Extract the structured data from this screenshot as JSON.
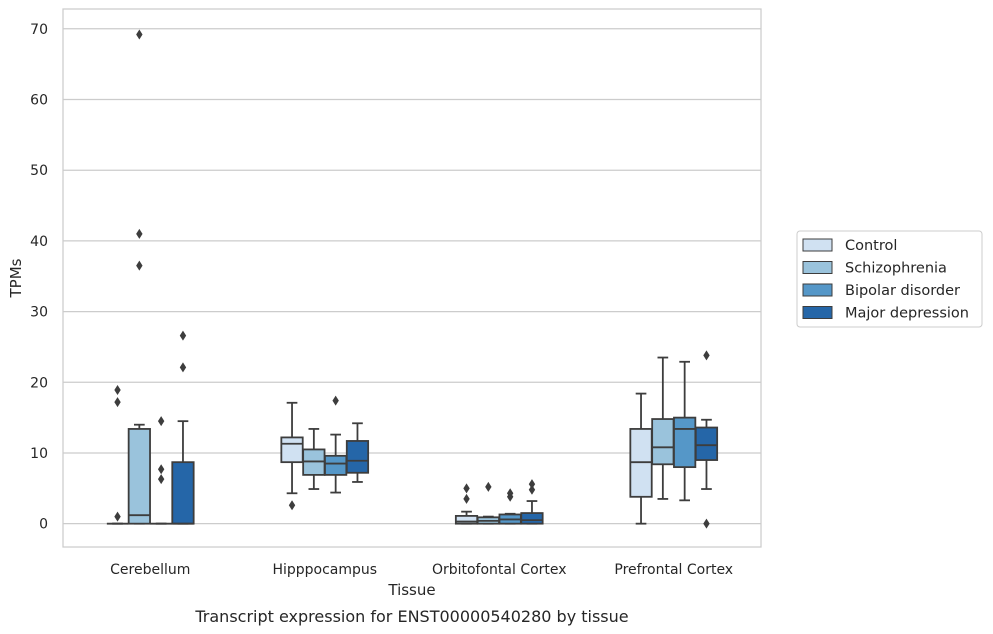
{
  "chart_data": {
    "type": "box",
    "title": "",
    "caption": "Transcript expression for ENST00000540280 by tissue",
    "xlabel": "Tissue",
    "ylabel": "TPMs",
    "ylim": [
      -3.3,
      72.8
    ],
    "yticks": [
      0,
      10,
      20,
      30,
      40,
      50,
      60,
      70
    ],
    "grid": "horizontal",
    "legend_position": "right",
    "categories": [
      "Cerebellum",
      "Hipppocampus",
      "Orbitofontal Cortex",
      "Prefrontal Cortex"
    ],
    "series": [
      {
        "name": "Control",
        "color": "#d0e1f2",
        "boxes": [
          {
            "q1": 0,
            "median": 0,
            "q3": 0,
            "whisker_low": 0,
            "whisker_high": 0,
            "outliers": [
              1.0,
              17.2,
              18.9
            ]
          },
          {
            "q1": 8.7,
            "median": 11.3,
            "q3": 12.2,
            "whisker_low": 4.3,
            "whisker_high": 17.1,
            "outliers": [
              2.6
            ]
          },
          {
            "q1": 0,
            "median": 0.3,
            "q3": 1.1,
            "whisker_low": 0,
            "whisker_high": 1.7,
            "outliers": [
              3.5,
              5.0
            ]
          },
          {
            "q1": 3.8,
            "median": 8.7,
            "q3": 13.4,
            "whisker_low": 0,
            "whisker_high": 18.4,
            "outliers": []
          }
        ]
      },
      {
        "name": "Schizophrenia",
        "color": "#9ac3dc",
        "boxes": [
          {
            "q1": 0,
            "median": 1.2,
            "q3": 13.4,
            "whisker_low": 0,
            "whisker_high": 14.0,
            "outliers": [
              36.5,
              41.0,
              69.2
            ]
          },
          {
            "q1": 6.9,
            "median": 8.8,
            "q3": 10.5,
            "whisker_low": 4.9,
            "whisker_high": 13.4,
            "outliers": []
          },
          {
            "q1": 0,
            "median": 0.4,
            "q3": 0.9,
            "whisker_low": 0,
            "whisker_high": 1.0,
            "outliers": [
              5.2
            ]
          },
          {
            "q1": 8.4,
            "median": 10.8,
            "q3": 14.8,
            "whisker_low": 3.5,
            "whisker_high": 23.5,
            "outliers": []
          }
        ]
      },
      {
        "name": "Bipolar disorder",
        "color": "#5597c8",
        "boxes": [
          {
            "q1": 0,
            "median": 0,
            "q3": 0,
            "whisker_low": 0,
            "whisker_high": 0,
            "outliers": [
              6.3,
              7.7,
              14.5
            ]
          },
          {
            "q1": 6.9,
            "median": 8.5,
            "q3": 9.6,
            "whisker_low": 4.4,
            "whisker_high": 12.6,
            "outliers": [
              17.4
            ]
          },
          {
            "q1": 0,
            "median": 0.6,
            "q3": 1.3,
            "whisker_low": 0,
            "whisker_high": 1.4,
            "outliers": [
              3.8,
              4.3
            ]
          },
          {
            "q1": 8.0,
            "median": 13.4,
            "q3": 15.0,
            "whisker_low": 3.3,
            "whisker_high": 22.9,
            "outliers": []
          }
        ]
      },
      {
        "name": "Major depression",
        "color": "#2566a8",
        "boxes": [
          {
            "q1": 0,
            "median": 0,
            "q3": 8.7,
            "whisker_low": 0,
            "whisker_high": 14.5,
            "outliers": [
              22.1,
              26.6
            ]
          },
          {
            "q1": 7.2,
            "median": 8.9,
            "q3": 11.7,
            "whisker_low": 5.9,
            "whisker_high": 14.2,
            "outliers": []
          },
          {
            "q1": 0,
            "median": 0.5,
            "q3": 1.5,
            "whisker_low": 0,
            "whisker_high": 3.2,
            "outliers": [
              4.8,
              5.6
            ]
          },
          {
            "q1": 9.0,
            "median": 11.1,
            "q3": 13.6,
            "whisker_low": 4.9,
            "whisker_high": 14.7,
            "outliers": [
              0,
              23.8
            ]
          }
        ]
      }
    ]
  }
}
